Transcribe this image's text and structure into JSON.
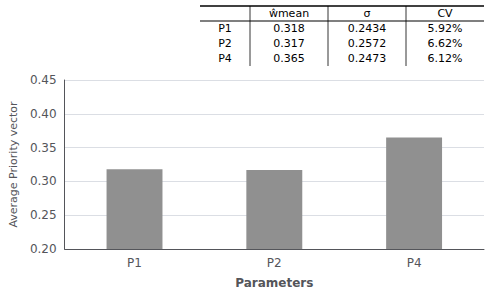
{
  "chart_data": {
    "type": "bar",
    "categories": [
      "P1",
      "P2",
      "P4"
    ],
    "values": [
      0.318,
      0.317,
      0.365
    ],
    "color": "#909090",
    "xlabel": "Parameters",
    "ylabel": "Average Priority vector",
    "ylim": [
      0.2,
      0.45
    ],
    "yticks": [
      {
        "value": 0.2,
        "label": "0.20"
      },
      0.25,
      {
        "value": 0.3,
        "label": "0.30"
      },
      0.35,
      {
        "value": 0.4,
        "label": "0.40"
      },
      0.45
    ],
    "grid": true,
    "table": {
      "headers": [
        "ŵmean",
        "σ",
        "CV"
      ],
      "rows": [
        [
          "P1",
          "0.318",
          "0.2434",
          "5.92%"
        ],
        [
          "P2",
          "0.317",
          "0.2572",
          "6.62%"
        ],
        [
          "P4",
          "0.365",
          "0.2473",
          "6.12%"
        ]
      ]
    }
  }
}
